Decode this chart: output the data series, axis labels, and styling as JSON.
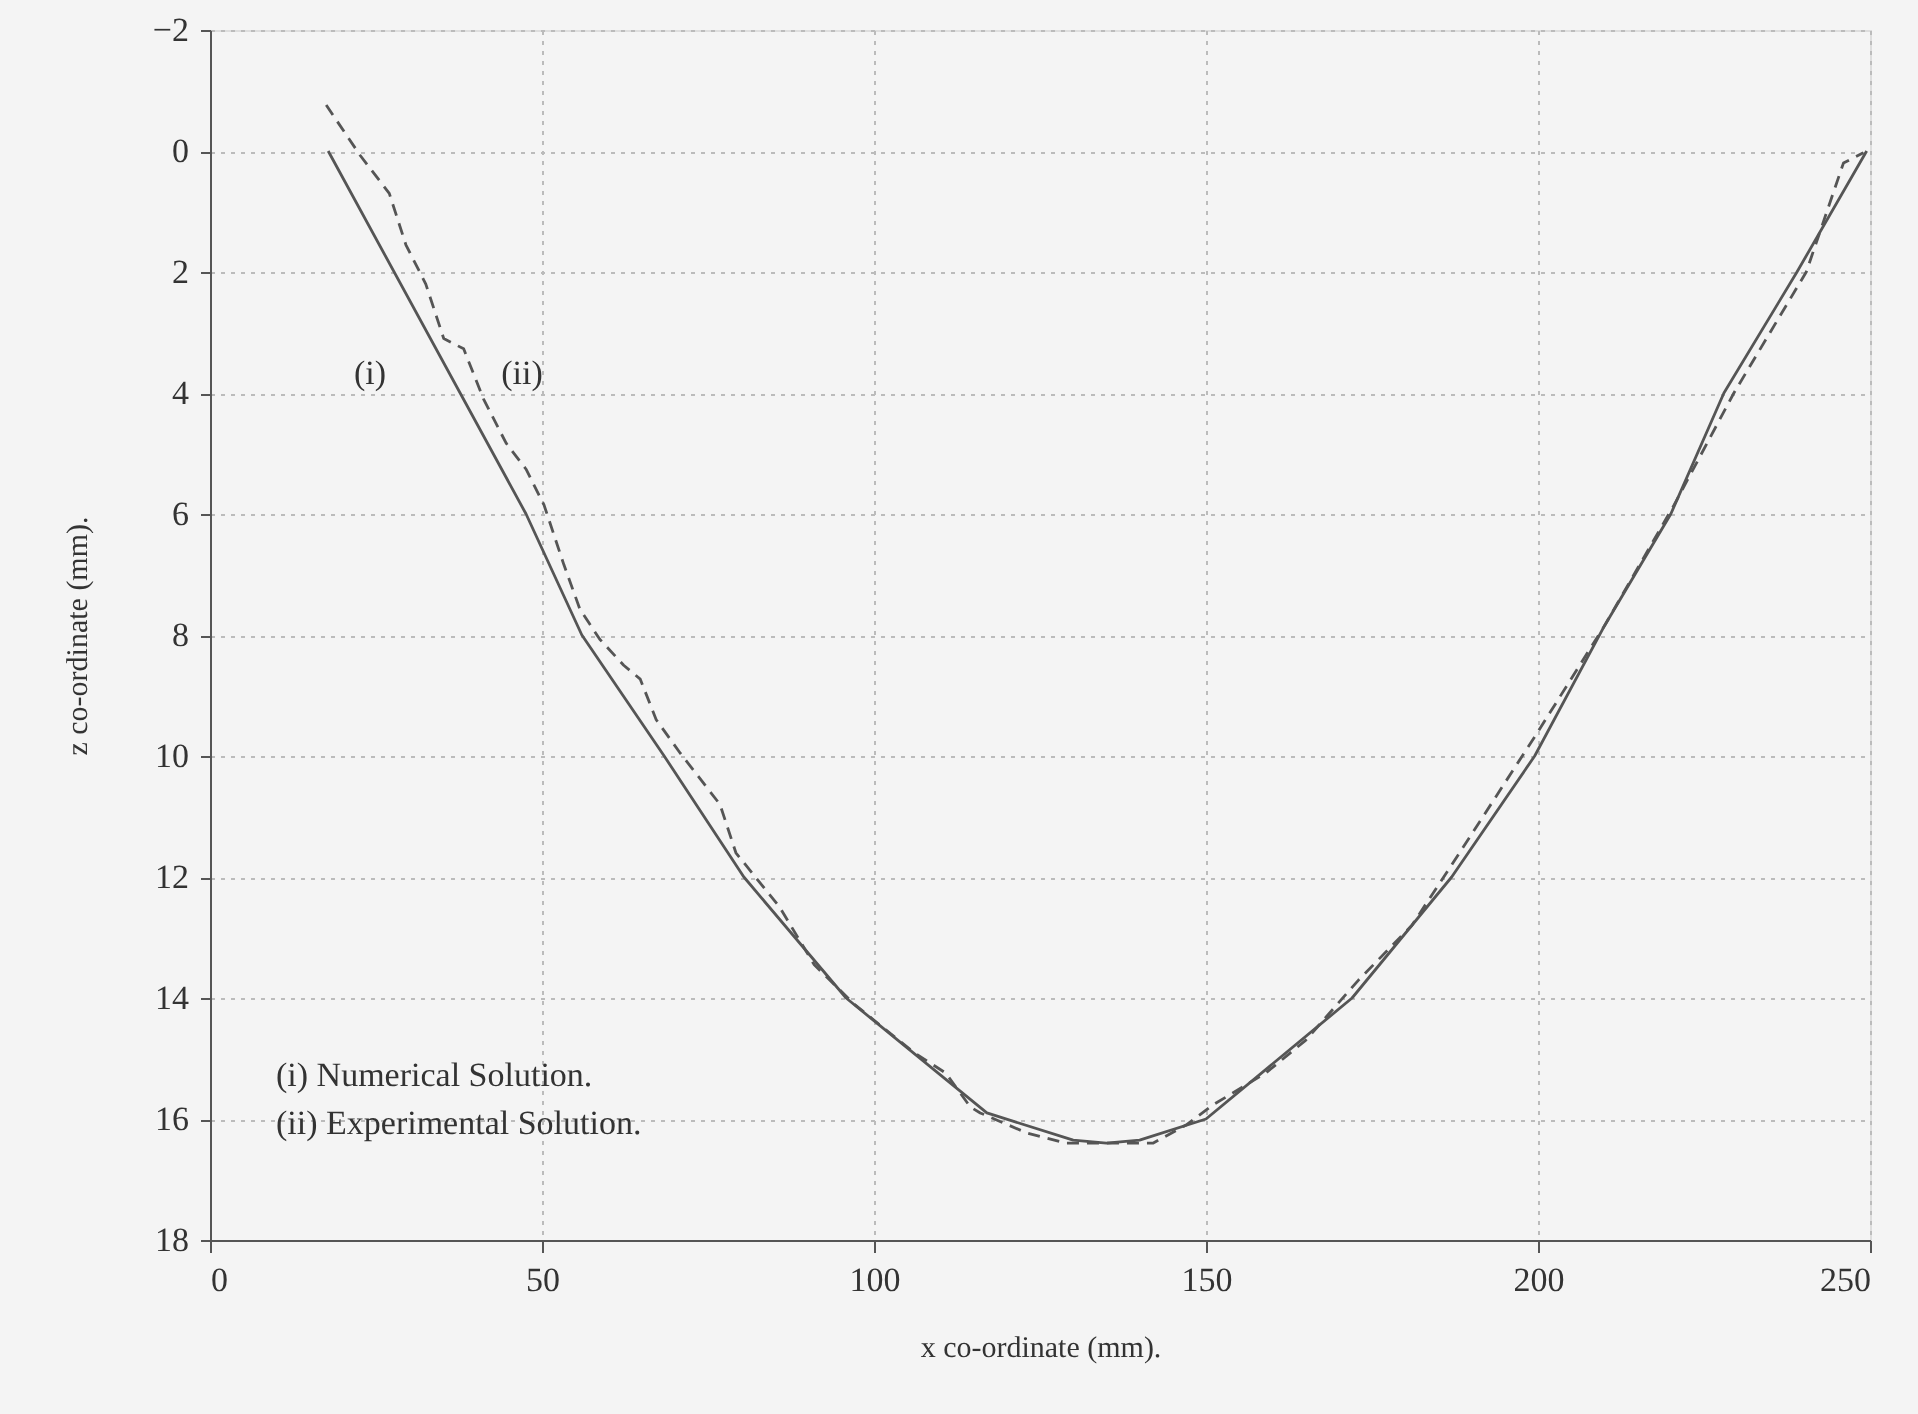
{
  "chart_data": {
    "type": "line",
    "xlabel": "x co-ordinate (mm).",
    "ylabel": "z co-ordinate (mm).",
    "xlim": [
      0,
      250
    ],
    "xticks": [
      0,
      50,
      100,
      150,
      200,
      250
    ],
    "ylim": [
      18,
      -2
    ],
    "yticks": [
      -2,
      0,
      2,
      4,
      6,
      8,
      10,
      12,
      14,
      16,
      18
    ],
    "grid": true,
    "series": [
      {
        "color": "#555555",
        "line_style": "solid",
        "x": [
          17.8,
          47.6,
          56,
          68.4,
          80.4,
          95.8,
          117,
          130,
          135,
          140,
          150,
          172,
          187,
          199.5,
          210,
          220,
          228,
          239,
          249.5
        ],
        "values": [
          0,
          6,
          8,
          10,
          12,
          14,
          15.9,
          16.35,
          16.4,
          16.35,
          16,
          14,
          12,
          10,
          7.85,
          6,
          4,
          2,
          0
        ]
      },
      {
        "color": "#555555",
        "line_style": "dashed",
        "x": [
          17.5,
          22.6,
          27,
          29.5,
          32.5,
          35.2,
          38.2,
          41.2,
          44.6,
          47.6,
          50.3,
          53.3,
          55.7,
          58.7,
          62.3,
          64.8,
          67.2,
          70.8,
          76.8,
          79.2,
          85.8,
          91,
          97,
          106,
          110.8,
          114.5,
          116,
          123,
          129,
          136,
          142,
          147,
          151,
          159,
          165,
          173,
          181,
          187,
          199.7,
          210,
          220.5,
          229.5,
          240.4,
          246,
          249
        ],
        "values": [
          -0.76,
          0.07,
          0.7,
          1.55,
          2.2,
          3.1,
          3.27,
          4.1,
          4.83,
          5.26,
          5.85,
          6.84,
          7.57,
          8.07,
          8.5,
          8.73,
          9.4,
          9.95,
          10.8,
          11.6,
          12.5,
          13.45,
          14.1,
          14.9,
          15.24,
          15.8,
          15.9,
          16.23,
          16.4,
          16.4,
          16.4,
          16.1,
          15.77,
          15.24,
          14.7,
          13.7,
          12.8,
          11.8,
          9.65,
          7.85,
          5.85,
          4,
          2,
          0.2,
          0.03
        ]
      }
    ],
    "annotations": [
      "(i)",
      "(ii)",
      "(i)  Numerical Solution.",
      "(ii) Experimental Solution."
    ]
  }
}
